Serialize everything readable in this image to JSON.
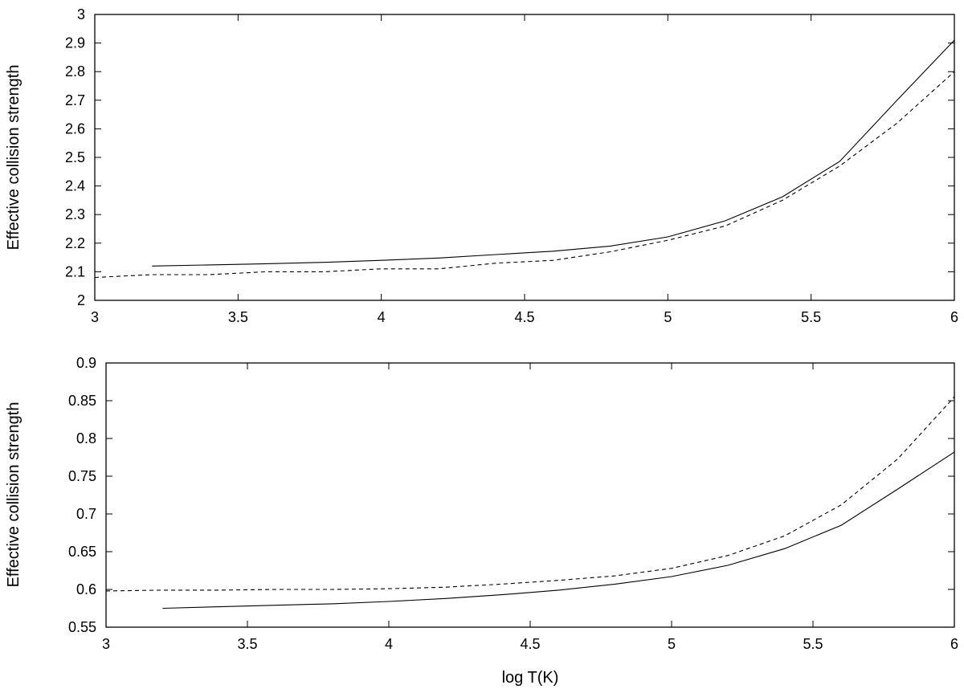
{
  "chart_data": [
    {
      "type": "line",
      "title": "",
      "xlabel": "",
      "ylabel": "Effective collision strength",
      "xlim": [
        3,
        6
      ],
      "ylim": [
        2,
        3
      ],
      "xticks": [
        "3",
        "3.5",
        "4",
        "4.5",
        "5",
        "5.5",
        "6"
      ],
      "yticks": [
        "2",
        "2.1",
        "2.2",
        "2.3",
        "2.4",
        "2.5",
        "2.6",
        "2.7",
        "2.8",
        "2.9",
        "3"
      ],
      "grid": false,
      "series": [
        {
          "style": "solid",
          "x": [
            3.2,
            3.4,
            3.6,
            3.8,
            4.0,
            4.2,
            4.4,
            4.6,
            4.8,
            5.0,
            5.2,
            5.4,
            5.6,
            5.8,
            6.0
          ],
          "y": [
            2.12,
            2.124,
            2.128,
            2.133,
            2.14,
            2.148,
            2.16,
            2.172,
            2.19,
            2.222,
            2.278,
            2.362,
            2.486,
            2.7,
            2.91
          ]
        },
        {
          "style": "dashed",
          "x": [
            3.0,
            3.2,
            3.4,
            3.6,
            3.8,
            4.0,
            4.2,
            4.4,
            4.6,
            4.8,
            5.0,
            5.2,
            5.4,
            5.6,
            5.8,
            6.0
          ],
          "y": [
            2.08,
            2.09,
            2.09,
            2.1,
            2.1,
            2.11,
            2.11,
            2.13,
            2.14,
            2.17,
            2.21,
            2.26,
            2.35,
            2.47,
            2.62,
            2.8
          ]
        }
      ]
    },
    {
      "type": "line",
      "title": "",
      "xlabel": "log T(K)",
      "ylabel": "Effective collision strength",
      "xlim": [
        3,
        6
      ],
      "ylim": [
        0.55,
        0.9
      ],
      "xticks": [
        "3",
        "3.5",
        "4",
        "4.5",
        "5",
        "5.5",
        "6"
      ],
      "yticks": [
        "0.55",
        "0.6",
        "0.65",
        "0.7",
        "0.75",
        "0.8",
        "0.85",
        "0.9"
      ],
      "grid": false,
      "series": [
        {
          "style": "solid",
          "x": [
            3.2,
            3.4,
            3.6,
            3.8,
            4.0,
            4.2,
            4.4,
            4.6,
            4.8,
            5.0,
            5.2,
            5.4,
            5.6,
            5.8,
            6.0
          ],
          "y": [
            0.575,
            0.577,
            0.579,
            0.581,
            0.584,
            0.588,
            0.593,
            0.599,
            0.607,
            0.617,
            0.632,
            0.654,
            0.685,
            0.733,
            0.782
          ]
        },
        {
          "style": "dashed",
          "x": [
            3.0,
            3.2,
            3.4,
            3.6,
            3.8,
            4.0,
            4.2,
            4.4,
            4.6,
            4.8,
            5.0,
            5.2,
            5.4,
            5.6,
            5.8,
            6.0
          ],
          "y": [
            0.598,
            0.599,
            0.599,
            0.6,
            0.6,
            0.601,
            0.603,
            0.607,
            0.612,
            0.618,
            0.628,
            0.645,
            0.671,
            0.712,
            0.773,
            0.855
          ]
        }
      ]
    }
  ]
}
